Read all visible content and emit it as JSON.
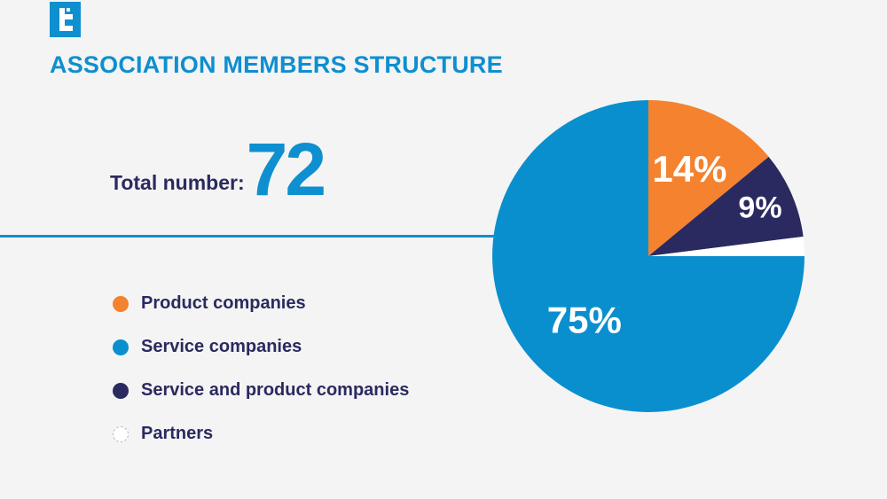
{
  "colors": {
    "accent": "#0e8fd0",
    "navy": "#2a2a60",
    "orange": "#f4822f",
    "service_blue": "#0a8fce",
    "partners_white": "#ffffff",
    "background": "#f4f4f4"
  },
  "logo": {
    "icon": "t-logo-icon"
  },
  "header": {
    "title": "ASSOCIATION MEMBERS STRUCTURE"
  },
  "summary": {
    "total_label": "Total number:",
    "total_value": "72"
  },
  "chart_data": {
    "type": "pie",
    "title": "",
    "categories": [
      "Product companies",
      "Service companies",
      "Service and product companies",
      "Partners"
    ],
    "values": [
      14,
      75,
      9,
      2
    ],
    "labels": [
      "14%",
      "75%",
      "9%",
      ""
    ],
    "colors": [
      "#f4822f",
      "#0a8fce",
      "#2a2a60",
      "#ffffff"
    ],
    "legend": "left"
  },
  "legend": {
    "items": [
      {
        "label": "Product companies",
        "color": "#f4822f"
      },
      {
        "label": "Service companies",
        "color": "#0a8fce"
      },
      {
        "label": "Service and product companies",
        "color": "#2a2a60"
      },
      {
        "label": "Partners",
        "color": "#ffffff"
      }
    ]
  }
}
